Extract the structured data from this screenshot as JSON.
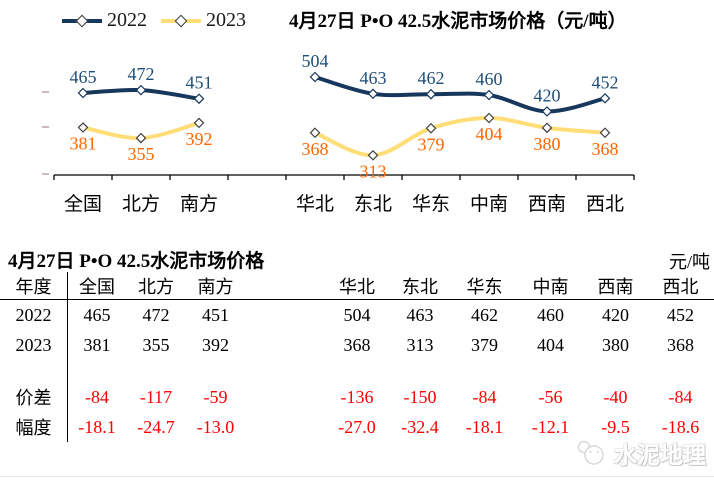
{
  "chart_title": "4月27日 P•O 42.5水泥市场价格（元/吨）",
  "legend": [
    {
      "label": "2022",
      "color": "#17375D"
    },
    {
      "label": "2023",
      "color": "#FFDD77"
    }
  ],
  "chart_data": {
    "type": "line",
    "categories": [
      "全国",
      "北方",
      "南方",
      "华北",
      "东北",
      "华东",
      "中南",
      "西南",
      "西北"
    ],
    "group_break_after_index": 2,
    "series": [
      {
        "name": "2022",
        "color": "#17375D",
        "marker_stroke": "#17375D",
        "label_color": "#1F4E79",
        "label_pos": "above",
        "values": [
          465,
          472,
          451,
          504,
          463,
          462,
          460,
          420,
          452
        ]
      },
      {
        "name": "2023",
        "color": "#FFDD77",
        "marker_stroke": "#404040",
        "label_color": "#FF6600",
        "label_pos": "below",
        "values": [
          381,
          355,
          392,
          368,
          313,
          379,
          404,
          380,
          368
        ]
      }
    ],
    "legend_position": "top-left",
    "grid": false,
    "y_axis_labels_visible": false
  },
  "table": {
    "title": "4月27日 P•O 42.5水泥市场价格",
    "unit": "元/吨",
    "row_header": "年度",
    "columns": [
      "全国",
      "北方",
      "南方",
      "华北",
      "东北",
      "华东",
      "中南",
      "西南",
      "西北"
    ],
    "rows": [
      {
        "label": "2022",
        "color": "black",
        "values": [
          "465",
          "472",
          "451",
          "504",
          "463",
          "462",
          "460",
          "420",
          "452"
        ]
      },
      {
        "label": "2023",
        "color": "black",
        "values": [
          "381",
          "355",
          "392",
          "368",
          "313",
          "379",
          "404",
          "380",
          "368"
        ]
      },
      {
        "label": "",
        "color": "black",
        "values": [
          "",
          "",
          "",
          "",
          "",
          "",
          "",
          "",
          ""
        ]
      },
      {
        "label": "价差",
        "color": "red",
        "values": [
          "-84",
          "-117",
          "-59",
          "-136",
          "-150",
          "-84",
          "-56",
          "-40",
          "-84"
        ]
      },
      {
        "label": "幅度",
        "color": "red",
        "values": [
          "-18.1",
          "-24.7",
          "-13.0",
          "-27.0",
          "-32.4",
          "-18.1",
          "-12.1",
          "-9.5",
          "-18.6"
        ]
      }
    ]
  },
  "watermark": {
    "text": "水泥地理"
  }
}
